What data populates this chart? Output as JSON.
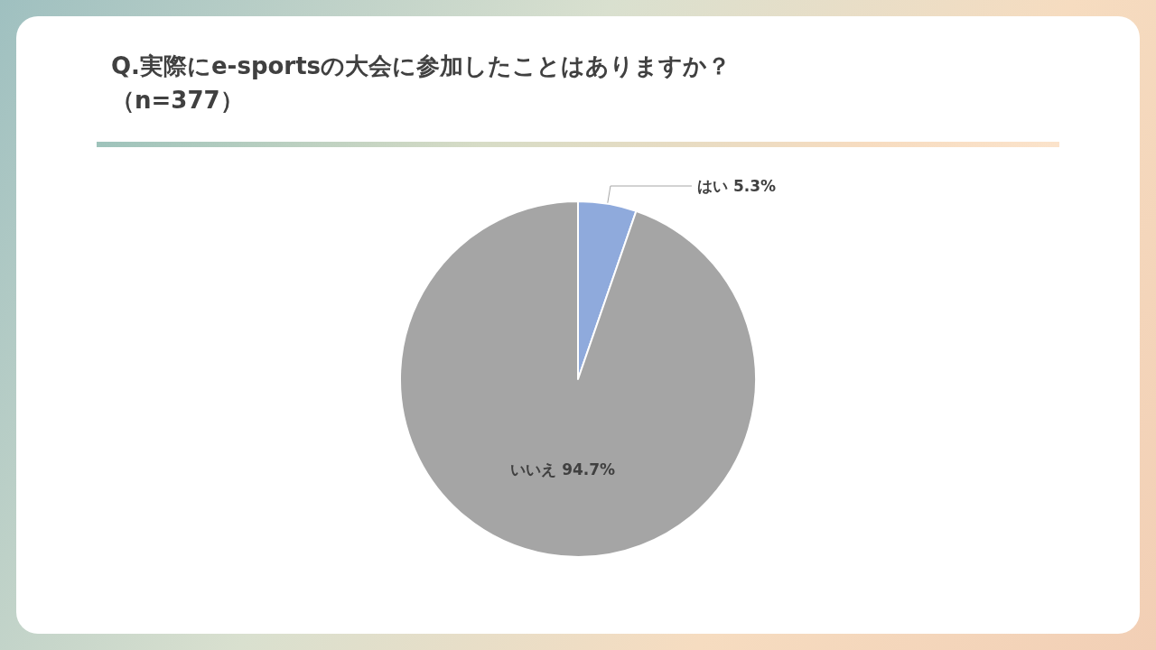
{
  "chart_data": {
    "type": "pie",
    "title": "Q.実際にe-sportsの大会に参加したことはありますか？",
    "subtitle": "（n=377）",
    "categories": [
      "はい",
      "いいえ"
    ],
    "values": [
      5.3,
      94.7
    ],
    "colors": [
      "#8faadc",
      "#a5a5a5"
    ],
    "value_labels": [
      "5.3%",
      "94.7%"
    ]
  }
}
